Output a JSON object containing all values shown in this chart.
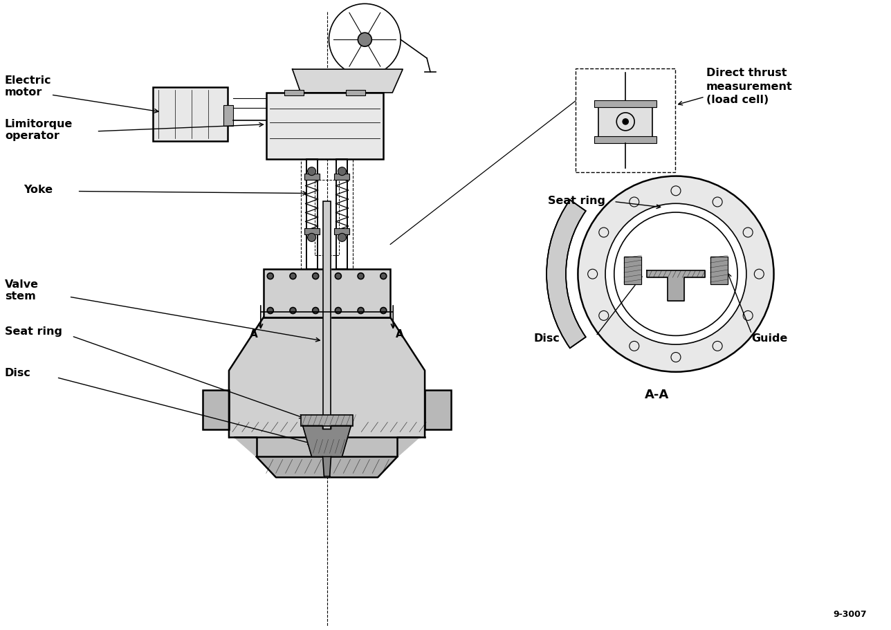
{
  "bg_color": "#ffffff",
  "line_color": "#000000",
  "fig_width": 12.88,
  "fig_height": 9.12,
  "labels": {
    "electric_motor": "Electric\nmotor",
    "limitorque": "Limitorque\noperator",
    "yoke": "Yoke",
    "valve_stem": "Valve\nstem",
    "seat_ring_main": "Seat ring",
    "disc_main": "Disc",
    "direct_thrust": "Direct thrust\nmeasurement\n(load cell)",
    "seat_ring_inset": "Seat ring",
    "disc_inset": "Disc",
    "guide_inset": "Guide",
    "aa_label": "A-A",
    "ref_num": "9-3007",
    "section_a_left": "A",
    "section_a_right": "A"
  }
}
